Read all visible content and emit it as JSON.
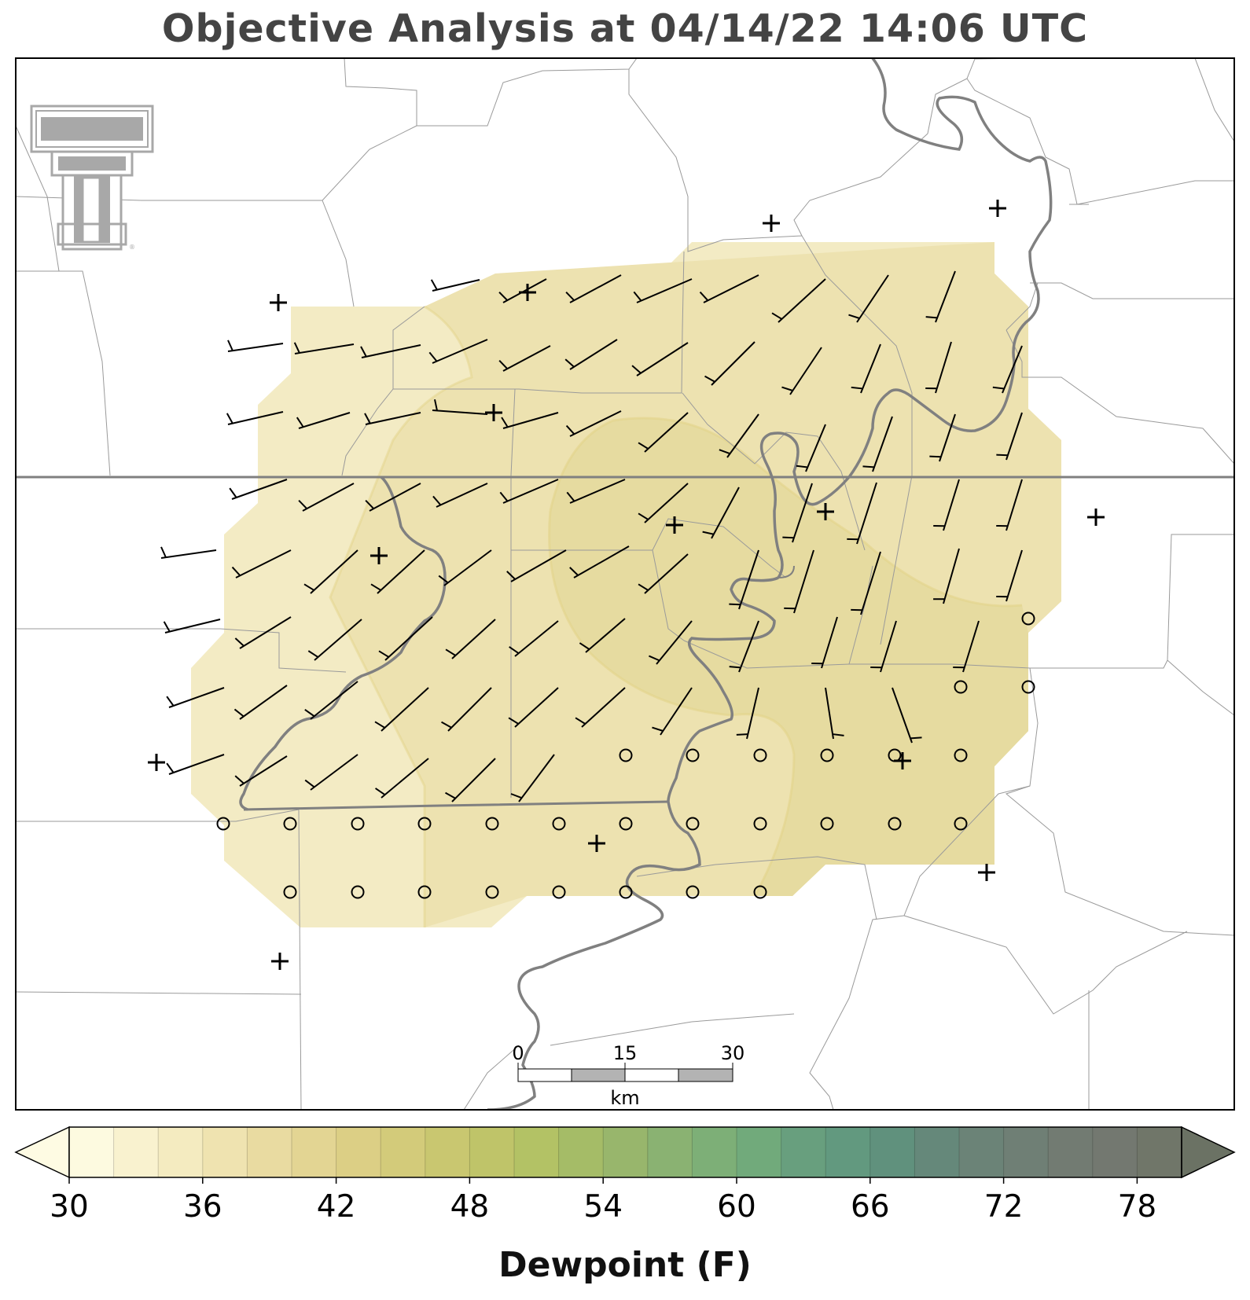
{
  "title": "Objective Analysis at 04/14/22 14:06 UTC",
  "logo": {
    "icon": "texas-tech-double-t-logo",
    "color": "#a8a8a8"
  },
  "map": {
    "field": "Dewpoint (F)",
    "fill_colors": [
      "#f5efcc",
      "#efe5b6",
      "#e9dea4"
    ],
    "analysis_mark": "+",
    "calm_mark": "o"
  },
  "scale_bar": {
    "labels": [
      "0",
      "15",
      "30"
    ],
    "unit": "km"
  },
  "colorbar": {
    "label": "Dewpoint (F)",
    "ticks": [
      "30",
      "36",
      "42",
      "48",
      "54",
      "60",
      "66",
      "72",
      "78"
    ],
    "min": 30,
    "max": 80,
    "step": 2,
    "colors": [
      "#fdfae0",
      "#f9f2cf",
      "#f4ebc0",
      "#efe3b0",
      "#e9dba1",
      "#e3d593",
      "#dccf85",
      "#d3cb7a",
      "#c9c770",
      "#bfc469",
      "#b3c265",
      "#a5bc67",
      "#98b66c",
      "#8ab272",
      "#7daf77",
      "#71aa7b",
      "#689f7e",
      "#62997f",
      "#60917d",
      "#65887a",
      "#6b8377",
      "#6f7f75",
      "#727b72",
      "#737870",
      "#707669"
    ],
    "over_color": "#6b7264",
    "under_color": "#fefbe3"
  }
}
